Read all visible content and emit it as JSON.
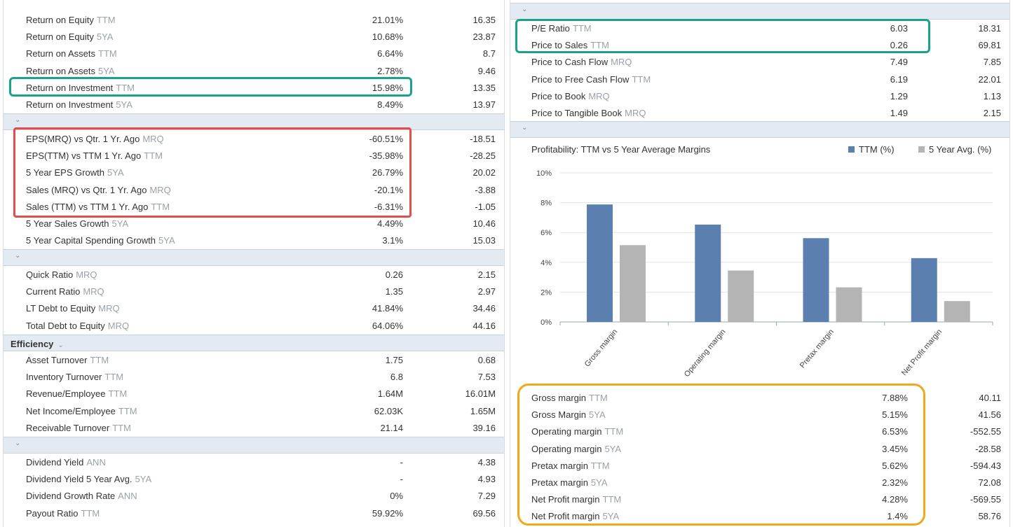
{
  "left": {
    "profitability_rows": [
      {
        "label": "Return on Equity",
        "period": "TTM",
        "v1": "21.01%",
        "v2": "16.35"
      },
      {
        "label": "Return on Equity",
        "period": "5YA",
        "v1": "10.68%",
        "v2": "23.87"
      },
      {
        "label": "Return on Assets",
        "period": "TTM",
        "v1": "6.64%",
        "v2": "8.7"
      },
      {
        "label": "Return on Assets",
        "period": "5YA",
        "v1": "2.78%",
        "v2": "9.46"
      },
      {
        "label": "Return on Investment",
        "period": "TTM",
        "v1": "15.98%",
        "v2": "13.35"
      },
      {
        "label": "Return on Investment",
        "period": "5YA",
        "v1": "8.49%",
        "v2": "13.97"
      }
    ],
    "growth_rows": [
      {
        "label": "EPS(MRQ) vs Qtr. 1 Yr. Ago",
        "period": "MRQ",
        "v1": "-60.51%",
        "v2": "-18.51"
      },
      {
        "label": "EPS(TTM) vs TTM 1 Yr. Ago",
        "period": "TTM",
        "v1": "-35.98%",
        "v2": "-28.25"
      },
      {
        "label": "5 Year EPS Growth",
        "period": "5YA",
        "v1": "26.79%",
        "v2": "20.02"
      },
      {
        "label": "Sales (MRQ) vs Qtr. 1 Yr. Ago",
        "period": "MRQ",
        "v1": "-20.1%",
        "v2": "-3.88"
      },
      {
        "label": "Sales (TTM) vs TTM 1 Yr. Ago",
        "period": "TTM",
        "v1": "-6.31%",
        "v2": "-1.05"
      },
      {
        "label": "5 Year Sales Growth",
        "period": "5YA",
        "v1": "4.49%",
        "v2": "10.46"
      },
      {
        "label": "5 Year Capital Spending Growth",
        "period": "5YA",
        "v1": "3.1%",
        "v2": "15.03"
      }
    ],
    "liquidity_rows": [
      {
        "label": "Quick Ratio",
        "period": "MRQ",
        "v1": "0.26",
        "v2": "2.15"
      },
      {
        "label": "Current Ratio",
        "period": "MRQ",
        "v1": "1.35",
        "v2": "2.97"
      },
      {
        "label": "LT Debt to Equity",
        "period": "MRQ",
        "v1": "41.84%",
        "v2": "34.46"
      },
      {
        "label": "Total Debt to Equity",
        "period": "MRQ",
        "v1": "64.06%",
        "v2": "44.16"
      }
    ],
    "efficiency_title": "Efficiency",
    "efficiency_rows": [
      {
        "label": "Asset Turnover",
        "period": "TTM",
        "v1": "1.75",
        "v2": "0.68"
      },
      {
        "label": "Inventory Turnover",
        "period": "TTM",
        "v1": "6.8",
        "v2": "7.53"
      },
      {
        "label": "Revenue/Employee",
        "period": "TTM",
        "v1": "1.64M",
        "v2": "16.01M"
      },
      {
        "label": "Net Income/Employee",
        "period": "TTM",
        "v1": "62.03K",
        "v2": "1.65M"
      },
      {
        "label": "Receivable Turnover",
        "period": "TTM",
        "v1": "21.14",
        "v2": "39.16"
      }
    ],
    "dividend_rows": [
      {
        "label": "Dividend Yield",
        "period": "ANN",
        "v1": "-",
        "v2": "4.38"
      },
      {
        "label": "Dividend Yield 5 Year Avg.",
        "period": "5YA",
        "v1": "-",
        "v2": "4.93"
      },
      {
        "label": "Dividend Growth Rate",
        "period": "ANN",
        "v1": "0%",
        "v2": "7.29"
      },
      {
        "label": "Payout Ratio",
        "period": "TTM",
        "v1": "59.92%",
        "v2": "69.56"
      }
    ]
  },
  "right": {
    "valuation_rows": [
      {
        "label": "P/E Ratio",
        "period": "TTM",
        "v1": "6.03",
        "v2": "18.31"
      },
      {
        "label": "Price to Sales",
        "period": "TTM",
        "v1": "0.26",
        "v2": "69.81"
      },
      {
        "label": "Price to Cash Flow",
        "period": "MRQ",
        "v1": "7.49",
        "v2": "7.85"
      },
      {
        "label": "Price to Free Cash Flow",
        "period": "TTM",
        "v1": "6.19",
        "v2": "22.01"
      },
      {
        "label": "Price to Book",
        "period": "MRQ",
        "v1": "1.29",
        "v2": "1.13"
      },
      {
        "label": "Price to Tangible Book",
        "period": "MRQ",
        "v1": "1.49",
        "v2": "2.15"
      }
    ],
    "margin_rows": [
      {
        "label": "Gross margin",
        "period": "TTM",
        "v1": "7.88%",
        "v2": "40.11"
      },
      {
        "label": "Gross Margin",
        "period": "5YA",
        "v1": "5.15%",
        "v2": "41.56"
      },
      {
        "label": "Operating margin",
        "period": "TTM",
        "v1": "6.53%",
        "v2": "-552.55"
      },
      {
        "label": "Operating margin",
        "period": "5YA",
        "v1": "3.45%",
        "v2": "-28.58"
      },
      {
        "label": "Pretax margin",
        "period": "TTM",
        "v1": "5.62%",
        "v2": "-594.43"
      },
      {
        "label": "Pretax margin",
        "period": "5YA",
        "v1": "2.32%",
        "v2": "72.08"
      },
      {
        "label": "Net Profit margin",
        "period": "TTM",
        "v1": "4.28%",
        "v2": "-569.55"
      },
      {
        "label": "Net Profit margin",
        "period": "5YA",
        "v1": "1.4%",
        "v2": "58.76"
      }
    ]
  },
  "chevron": "⌄",
  "chart_data": {
    "type": "bar",
    "title": "Profitability: TTM vs 5 Year Average Margins",
    "categories": [
      "Gross margin",
      "Operating margin",
      "Pretax margin",
      "Net Profit margin"
    ],
    "series": [
      {
        "name": "TTM (%)",
        "values": [
          7.88,
          6.53,
          5.62,
          4.28
        ],
        "color": "#5b7fae"
      },
      {
        "name": "5 Year Avg. (%)",
        "values": [
          5.15,
          3.45,
          2.32,
          1.4
        ],
        "color": "#b4b4b4"
      }
    ],
    "ylim": [
      0,
      10
    ],
    "yticks": [
      "0%",
      "2%",
      "4%",
      "6%",
      "8%",
      "10%"
    ],
    "grid": true,
    "legend": "top-right"
  }
}
